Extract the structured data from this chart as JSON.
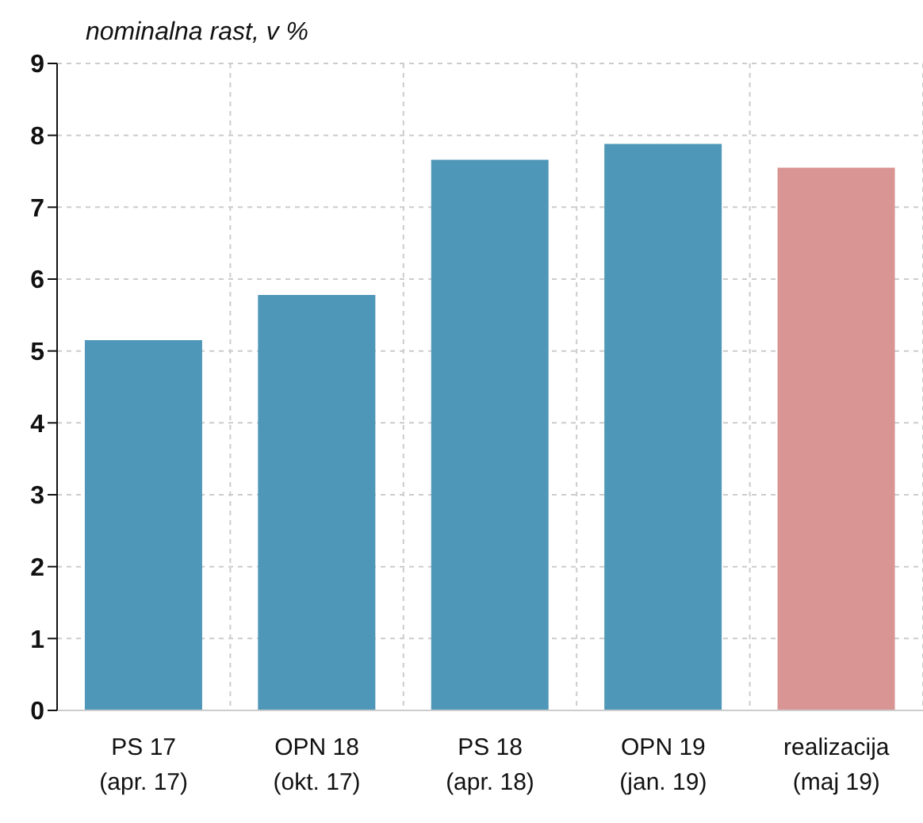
{
  "chart_data": {
    "type": "bar",
    "ylabel": "nominalna rast, v %",
    "categories": [
      "PS 17\n(apr. 17)",
      "OPN 18\n(okt. 17)",
      "PS 18\n(apr. 18)",
      "OPN 19\n(jan. 19)",
      "realizacija\n(maj 19)"
    ],
    "values": [
      5.15,
      5.78,
      7.66,
      7.88,
      7.55
    ],
    "colors": [
      "#4f97b8",
      "#4f97b8",
      "#4f97b8",
      "#4f97b8",
      "#d99494"
    ],
    "ylim": [
      0,
      9
    ],
    "yticks": [
      0,
      1,
      2,
      3,
      4,
      5,
      6,
      7,
      8,
      9
    ],
    "grid": true
  }
}
